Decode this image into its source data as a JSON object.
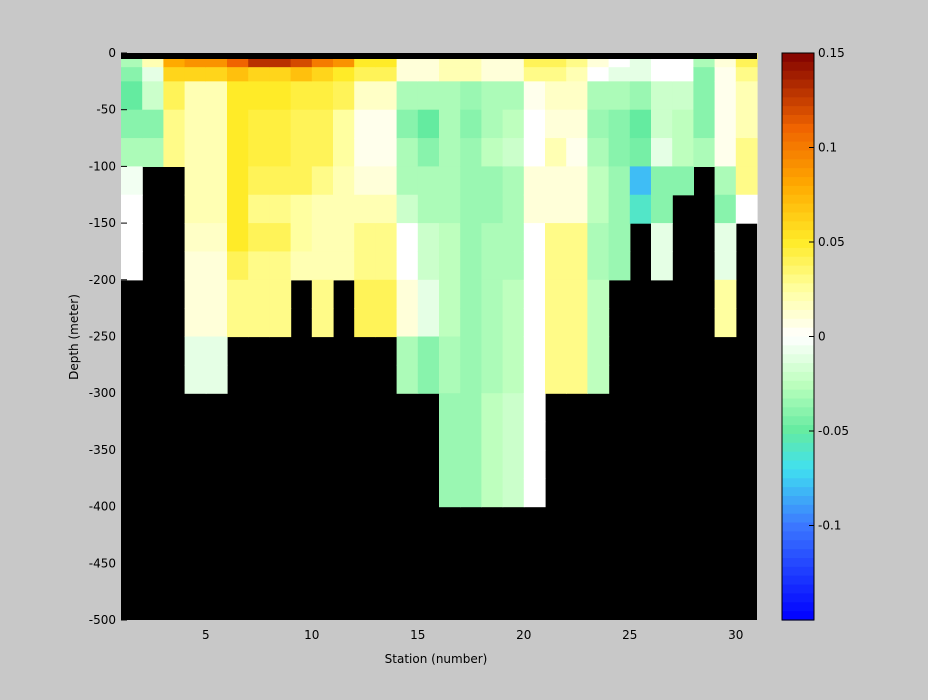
{
  "chart_data": {
    "type": "heatmap",
    "title": "",
    "xlabel": "Station (number)",
    "ylabel": "Depth (meter)",
    "xlim": [
      1,
      31
    ],
    "ylim": [
      -500,
      0
    ],
    "x_ticks": [
      "5",
      "10",
      "15",
      "20",
      "25",
      "30"
    ],
    "y_ticks": [
      "0",
      "-50",
      "-100",
      "-150",
      "-200",
      "-250",
      "-300",
      "-350",
      "-400",
      "-450",
      "-500"
    ],
    "colorbar": {
      "range": [
        -0.15,
        0.15
      ],
      "ticks": [
        "0.15",
        "0.1",
        "0.05",
        "0",
        "-0.05",
        "-0.1"
      ],
      "colormap": "jet-white-center"
    },
    "masked_color": "#000000",
    "stations": [
      1,
      2,
      3,
      4,
      5,
      6,
      7,
      8,
      9,
      10,
      11,
      12,
      13,
      14,
      15,
      16,
      17,
      18,
      19,
      20,
      21,
      22,
      23,
      24,
      25,
      26,
      27,
      28,
      29,
      30
    ],
    "depths": [
      0,
      -12.5,
      -25,
      -50,
      -75,
      -100,
      -125,
      -150,
      -175,
      -200,
      -225,
      -250,
      -275,
      -300,
      -325,
      -350,
      -375,
      -400
    ],
    "values": [
      [
        -0.03,
        -0.04,
        -0.05,
        -0.04,
        -0.03,
        -0.005,
        0,
        0,
        0,
        null,
        null,
        null,
        null,
        null,
        null,
        null,
        null
      ],
      [
        0.02,
        -0.01,
        -0.02,
        -0.04,
        -0.03,
        null,
        null,
        null,
        null,
        null,
        null,
        null,
        null,
        null,
        null,
        null,
        null
      ],
      [
        0.08,
        0.06,
        0.04,
        0.03,
        0.03,
        null,
        null,
        null,
        null,
        null,
        null,
        null,
        null,
        null,
        null,
        null,
        null
      ],
      [
        0.09,
        0.06,
        0.02,
        0.02,
        0.02,
        0.02,
        0.02,
        0.015,
        0.01,
        0.01,
        0.01,
        -0.01,
        -0.01,
        null,
        null,
        null,
        null
      ],
      [
        0.09,
        0.06,
        0.02,
        0.02,
        0.02,
        0.02,
        0.02,
        0.015,
        0.01,
        0.01,
        0.01,
        -0.01,
        -0.01,
        null,
        null,
        null,
        null
      ],
      [
        0.11,
        0.07,
        0.05,
        0.05,
        0.05,
        0.05,
        0.05,
        0.05,
        0.04,
        0.03,
        0.03,
        null,
        null,
        null,
        null,
        null,
        null
      ],
      [
        0.13,
        0.06,
        0.05,
        0.045,
        0.045,
        0.04,
        0.03,
        0.04,
        0.03,
        0.03,
        0.03,
        null,
        null,
        null,
        null,
        null,
        null
      ],
      [
        0.13,
        0.06,
        0.05,
        0.045,
        0.045,
        0.04,
        0.03,
        0.04,
        0.03,
        0.03,
        0.03,
        null,
        null,
        null,
        null,
        null,
        null
      ],
      [
        0.12,
        0.07,
        0.045,
        0.04,
        0.04,
        0.04,
        0.025,
        0.025,
        0.02,
        null,
        null,
        null,
        null,
        null,
        null,
        null,
        null
      ],
      [
        0.1,
        0.06,
        0.045,
        0.04,
        0.04,
        0.03,
        0.02,
        0.02,
        0.02,
        0.03,
        0.03,
        null,
        null,
        null,
        null,
        null,
        null
      ],
      [
        0.09,
        0.05,
        0.04,
        0.025,
        0.025,
        0.02,
        0.02,
        0.02,
        0.02,
        null,
        null,
        null,
        null,
        null,
        null,
        null,
        null
      ],
      [
        0.05,
        0.04,
        0.015,
        0.005,
        0.005,
        0.01,
        0.02,
        0.03,
        0.03,
        0.04,
        0.04,
        null,
        null,
        null,
        null,
        null,
        null
      ],
      [
        0.05,
        0.04,
        0.015,
        0.005,
        0.005,
        0.01,
        0.02,
        0.03,
        0.03,
        0.04,
        0.04,
        null,
        null,
        null,
        null,
        null,
        null
      ],
      [
        0.01,
        0.01,
        -0.03,
        -0.04,
        -0.03,
        -0.03,
        -0.02,
        0,
        0,
        0.01,
        0.01,
        -0.03,
        -0.03,
        null,
        null,
        null,
        null
      ],
      [
        0.01,
        0.01,
        -0.03,
        -0.05,
        -0.04,
        -0.03,
        -0.03,
        -0.02,
        -0.02,
        -0.01,
        -0.01,
        -0.04,
        -0.04,
        null,
        null,
        null,
        null
      ],
      [
        0.02,
        0.02,
        -0.03,
        -0.03,
        -0.03,
        -0.03,
        -0.03,
        -0.025,
        -0.025,
        -0.025,
        -0.025,
        -0.03,
        -0.03,
        -0.035,
        -0.035,
        -0.035,
        -0.035
      ],
      [
        0.02,
        0.02,
        -0.035,
        -0.04,
        -0.035,
        -0.035,
        -0.035,
        -0.035,
        -0.035,
        -0.035,
        -0.035,
        -0.035,
        -0.035,
        -0.035,
        -0.035,
        -0.035,
        -0.035
      ],
      [
        0.01,
        0.01,
        -0.03,
        -0.03,
        -0.025,
        -0.035,
        -0.035,
        -0.03,
        -0.03,
        -0.03,
        -0.03,
        -0.03,
        -0.03,
        -0.025,
        -0.025,
        -0.025,
        -0.025
      ],
      [
        0.01,
        0.01,
        -0.03,
        -0.025,
        -0.02,
        -0.03,
        -0.03,
        -0.03,
        -0.03,
        -0.025,
        -0.025,
        -0.025,
        -0.025,
        -0.02,
        -0.02,
        -0.02,
        -0.02
      ],
      [
        0.04,
        0.03,
        0.005,
        0.0,
        0.0,
        0.01,
        0.01,
        0.0,
        0.0,
        0.0,
        0.0,
        0.0,
        0.0,
        0.0,
        0.0,
        0.0,
        0.0
      ],
      [
        0.04,
        0.03,
        0.015,
        0.01,
        0.02,
        0.01,
        0.01,
        0.03,
        0.03,
        0.03,
        0.03,
        0.03,
        0.03,
        null,
        null,
        null,
        null
      ],
      [
        0.03,
        0.02,
        0.015,
        0.01,
        0.005,
        0.01,
        0.01,
        0.03,
        0.03,
        0.03,
        0.03,
        0.03,
        0.03,
        null,
        null,
        null,
        null
      ],
      [
        0.01,
        0.0,
        -0.03,
        -0.035,
        -0.03,
        -0.025,
        -0.025,
        -0.03,
        -0.03,
        -0.025,
        -0.025,
        -0.025,
        -0.025,
        null,
        null,
        null,
        null
      ],
      [
        0.0,
        -0.01,
        -0.03,
        -0.04,
        -0.04,
        -0.035,
        -0.035,
        -0.035,
        -0.035,
        null,
        null,
        null,
        null,
        null,
        null,
        null,
        null
      ],
      [
        -0.01,
        -0.01,
        -0.035,
        -0.05,
        -0.045,
        -0.08,
        -0.06,
        null,
        null,
        null,
        null,
        null,
        null,
        null,
        null,
        null,
        null
      ],
      [
        0.0,
        0.0,
        -0.02,
        -0.02,
        -0.01,
        -0.04,
        -0.04,
        -0.01,
        -0.01,
        null,
        null,
        null,
        null,
        null,
        null,
        null,
        null
      ],
      [
        0.0,
        0.0,
        -0.02,
        -0.025,
        -0.025,
        -0.04,
        null,
        null,
        null,
        null,
        null,
        null,
        null,
        null,
        null,
        null,
        null
      ],
      [
        -0.03,
        -0.04,
        -0.04,
        -0.04,
        -0.03,
        null,
        null,
        null,
        null,
        null,
        null,
        null,
        null,
        null,
        null,
        null,
        null
      ],
      [
        0.01,
        0.005,
        0.005,
        0.005,
        0.005,
        -0.03,
        -0.04,
        -0.01,
        -0.01,
        0.025,
        0.025,
        null,
        null,
        null,
        null,
        null,
        null
      ],
      [
        0.04,
        0.03,
        0.02,
        0.02,
        0.03,
        0.03,
        0.0,
        null,
        null,
        null,
        null,
        null,
        null,
        null,
        null,
        null,
        null
      ]
    ]
  }
}
